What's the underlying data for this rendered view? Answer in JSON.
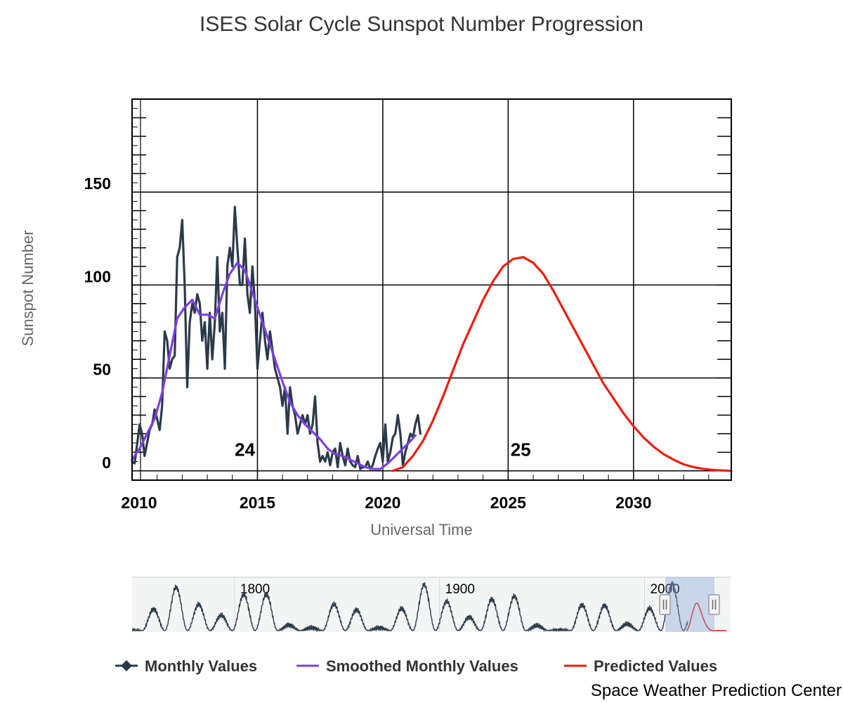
{
  "chart_data": {
    "type": "line",
    "title": "ISES Solar Cycle Sunspot Number Progression",
    "xlabel": "Universal Time",
    "ylabel": "Sunspot Number",
    "xlim": [
      2010,
      2033.9
    ],
    "ylim": [
      -5,
      200
    ],
    "x_ticks": [
      "2010",
      "2015",
      "2020",
      "2025",
      "2030"
    ],
    "y_ticks": [
      "0",
      "50",
      "100",
      "150"
    ],
    "grid": true,
    "cycle_labels": [
      {
        "text": "24",
        "x": 2014.5,
        "y": 8
      },
      {
        "text": "25",
        "x": 2025.5,
        "y": 8
      }
    ],
    "series": [
      {
        "name": "Monthly Values",
        "color": "#2b3a4a",
        "x": [
          2010.0,
          2010.1,
          2010.2,
          2010.3,
          2010.4,
          2010.5,
          2010.6,
          2010.7,
          2010.8,
          2010.9,
          2011.0,
          2011.1,
          2011.2,
          2011.3,
          2011.4,
          2011.5,
          2011.6,
          2011.7,
          2011.8,
          2011.9,
          2012.0,
          2012.1,
          2012.2,
          2012.3,
          2012.4,
          2012.5,
          2012.6,
          2012.7,
          2012.8,
          2012.9,
          2013.0,
          2013.1,
          2013.2,
          2013.3,
          2013.4,
          2013.5,
          2013.6,
          2013.7,
          2013.8,
          2013.9,
          2014.0,
          2014.1,
          2014.2,
          2014.3,
          2014.4,
          2014.5,
          2014.6,
          2014.7,
          2014.8,
          2014.9,
          2015.0,
          2015.1,
          2015.2,
          2015.3,
          2015.4,
          2015.5,
          2015.6,
          2015.7,
          2015.8,
          2015.9,
          2016.0,
          2016.1,
          2016.2,
          2016.3,
          2016.4,
          2016.5,
          2016.6,
          2016.7,
          2016.8,
          2016.9,
          2017.0,
          2017.1,
          2017.2,
          2017.3,
          2017.4,
          2017.5,
          2017.6,
          2017.7,
          2017.8,
          2017.9,
          2018.0,
          2018.1,
          2018.2,
          2018.3,
          2018.4,
          2018.5,
          2018.6,
          2018.7,
          2018.8,
          2018.9,
          2019.0,
          2019.1,
          2019.2,
          2019.3,
          2019.4,
          2019.5,
          2019.6,
          2019.7,
          2019.8,
          2019.9,
          2020.0,
          2020.1,
          2020.2,
          2020.3,
          2020.4,
          2020.5,
          2020.6,
          2020.7,
          2020.8,
          2020.9,
          2021.0,
          2021.1,
          2021.2,
          2021.3,
          2021.4,
          2021.5
        ],
        "y": [
          5,
          4,
          14,
          25,
          20,
          8,
          15,
          22,
          25,
          33,
          28,
          22,
          35,
          75,
          70,
          55,
          60,
          62,
          115,
          120,
          135,
          100,
          45,
          80,
          90,
          85,
          95,
          90,
          70,
          80,
          55,
          85,
          60,
          80,
          115,
          75,
          85,
          55,
          110,
          120,
          110,
          142,
          120,
          100,
          100,
          125,
          95,
          85,
          110,
          90,
          55,
          70,
          85,
          70,
          60,
          75,
          65,
          55,
          50,
          45,
          35,
          45,
          20,
          45,
          35,
          30,
          20,
          25,
          30,
          25,
          30,
          20,
          25,
          40,
          15,
          5,
          8,
          5,
          10,
          3,
          10,
          12,
          2,
          15,
          8,
          3,
          12,
          5,
          3,
          2,
          8,
          1,
          2,
          2,
          5,
          1,
          3,
          8,
          12,
          15,
          5,
          25,
          5,
          10,
          18,
          20,
          30,
          20,
          3,
          10,
          15,
          20,
          18,
          25,
          30,
          20
        ]
      },
      {
        "name": "Smoothed Monthly Values",
        "color": "#7b3fe4",
        "x": [
          2010.0,
          2010.3,
          2010.6,
          2010.9,
          2011.2,
          2011.5,
          2011.8,
          2012.1,
          2012.4,
          2012.7,
          2013.0,
          2013.3,
          2013.6,
          2013.9,
          2014.2,
          2014.5,
          2014.8,
          2015.1,
          2015.4,
          2015.7,
          2016.0,
          2016.3,
          2016.6,
          2016.9,
          2017.2,
          2017.5,
          2017.8,
          2018.1,
          2018.4,
          2018.7,
          2019.0,
          2019.3,
          2019.6,
          2019.9,
          2020.2,
          2020.5,
          2020.8,
          2021.1,
          2021.3
        ],
        "y": [
          6,
          12,
          20,
          28,
          42,
          62,
          82,
          88,
          92,
          84,
          84,
          82,
          95,
          106,
          112,
          108,
          96,
          84,
          72,
          60,
          48,
          37,
          30,
          25,
          21,
          17,
          12,
          9,
          8,
          6,
          4,
          2,
          1,
          1,
          4,
          8,
          12,
          16,
          19
        ]
      },
      {
        "name": "Predicted Values",
        "color": "#ee1c0e",
        "x": [
          2020.4,
          2020.8,
          2021.2,
          2021.6,
          2022.0,
          2022.4,
          2022.8,
          2023.2,
          2023.6,
          2024.0,
          2024.4,
          2024.8,
          2025.2,
          2025.6,
          2026.0,
          2026.4,
          2026.8,
          2027.2,
          2027.6,
          2028.0,
          2028.4,
          2028.8,
          2029.2,
          2029.6,
          2030.0,
          2030.4,
          2030.8,
          2031.2,
          2031.6,
          2032.0,
          2032.4,
          2032.8,
          2033.2,
          2033.6,
          2033.9
        ],
        "y": [
          0,
          2,
          8,
          16,
          27,
          40,
          54,
          68,
          80,
          92,
          102,
          110,
          114,
          115,
          112,
          106,
          97,
          87,
          77,
          67,
          57,
          47,
          39,
          31,
          24,
          18,
          13,
          9,
          6,
          3.5,
          2,
          1,
          0.5,
          0.2,
          0
        ]
      }
    ]
  },
  "navigator": {
    "labels": [
      "1800",
      "1900",
      "2000"
    ],
    "series": [
      {
        "name": "history",
        "color": "#2b3a4a"
      },
      {
        "name": "prediction",
        "color": "#ee1c0e"
      }
    ]
  },
  "legend": {
    "items": [
      {
        "label": "Monthly Values",
        "color": "#2b3a4a",
        "marker": "diamond"
      },
      {
        "label": "Smoothed Monthly Values",
        "color": "#7b3fe4",
        "marker": "line"
      },
      {
        "label": "Predicted Values",
        "color": "#ee1c0e",
        "marker": "line"
      }
    ]
  },
  "credit": "Space Weather Prediction Center"
}
